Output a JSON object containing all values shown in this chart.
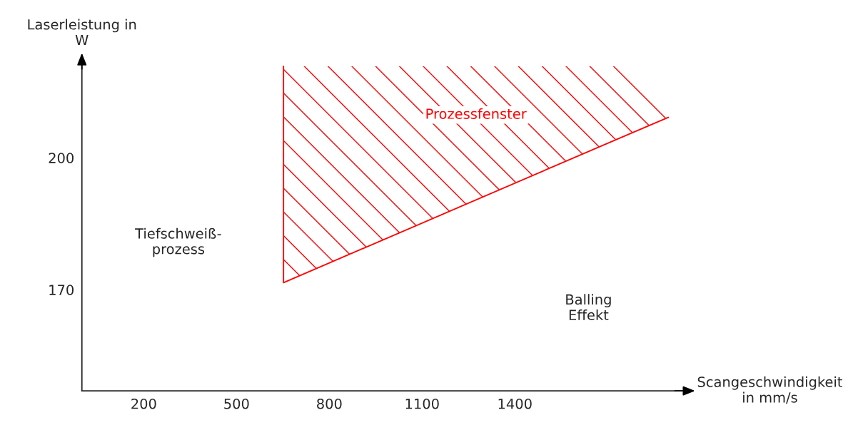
{
  "chart_data": {
    "type": "line",
    "xlabel": "Scangeschwindigkeit\nin mm/s",
    "ylabel": "Laserleistung in\nW",
    "series": [
      {
        "name": "Prozessfenster",
        "color": "#ff0000",
        "x": [
          652,
          652,
          1746,
          1896
        ],
        "values": [
          220.8,
          171.6,
          204.7,
          209.2
        ],
        "lower": [
          220.8,
          171.6,
          204.7,
          209.2
        ],
        "upper": [
          220.8,
          220.8,
          220.8,
          209.2
        ]
      }
    ],
    "xlim": [
      0,
      1950
    ],
    "ylim": [
      147,
      222
    ],
    "xticks": [
      200,
      500,
      800,
      1100,
      1400
    ],
    "yticks": [
      170,
      200
    ],
    "grid": false,
    "legend": false,
    "annotations": [
      "Tiefschweiß-\nprozess",
      "Balling\nEffekt"
    ]
  }
}
